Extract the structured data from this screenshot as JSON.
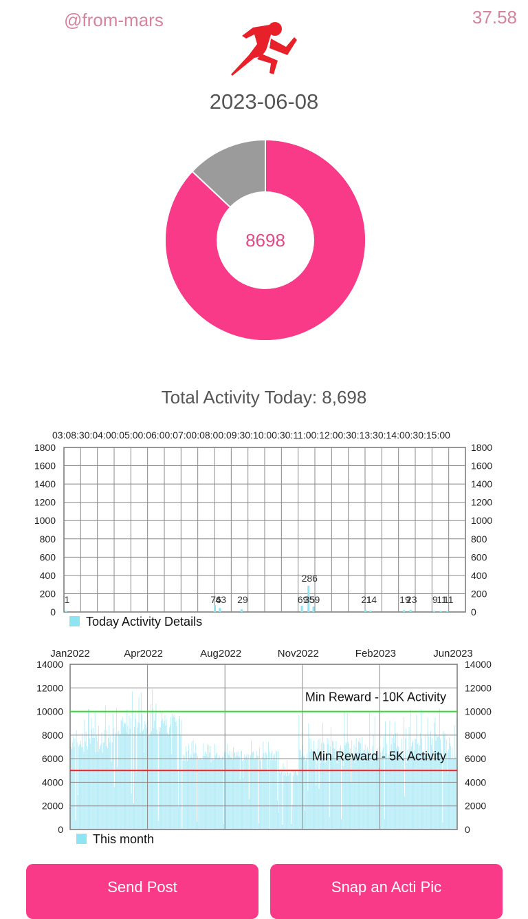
{
  "header": {
    "username": "@from-mars",
    "balance": "37.58"
  },
  "date": "2023-06-08",
  "donut": {
    "value_label": "8698",
    "progress_fraction": 0.87,
    "color_progress": "#f83a88",
    "color_rest": "#9b9b9b"
  },
  "total_label": "Total Activity Today: 8,698",
  "chart_data": [
    {
      "type": "bar",
      "legend": "Today Activity Details",
      "x_tick_labels_top": "03:08:30:04:00:05:00:06:00:07:00:08:00:09:30:10:00:30:11:00:12:00:30:13:30:14:00:30:15:00",
      "ylim": [
        0,
        1800
      ],
      "yticks": [
        0,
        200,
        400,
        600,
        800,
        1000,
        1200,
        1400,
        1600,
        1800
      ],
      "grid": true,
      "bar_color": "#8ee4f3",
      "bars": [
        {
          "i": 0.1,
          "v": 1,
          "label": "1"
        },
        {
          "i": 9.0,
          "v": 76,
          "label": "76"
        },
        {
          "i": 9.3,
          "v": 43,
          "label": "43"
        },
        {
          "i": 10.6,
          "v": 29,
          "label": "29"
        },
        {
          "i": 14.2,
          "v": 69,
          "label": "69"
        },
        {
          "i": 14.6,
          "v": 286,
          "label": "286"
        },
        {
          "i": 14.6,
          "v": 35,
          "label": "35"
        },
        {
          "i": 14.9,
          "v": 59,
          "label": "59"
        },
        {
          "i": 18.0,
          "v": 21,
          "label": "21"
        },
        {
          "i": 18.3,
          "v": 14,
          "label": "14"
        },
        {
          "i": 20.3,
          "v": 19,
          "label": "19"
        },
        {
          "i": 20.7,
          "v": 23,
          "label": "23"
        },
        {
          "i": 22.1,
          "v": 9,
          "label": "9"
        },
        {
          "i": 22.5,
          "v": 11,
          "label": "11"
        },
        {
          "i": 22.9,
          "v": 11,
          "label": "11"
        }
      ]
    },
    {
      "type": "bar",
      "legend": "This month",
      "x_tick_labels": [
        "Jan2022",
        "Apr2022",
        "Aug2022",
        "Nov2022",
        "Feb2023",
        "Jun2023"
      ],
      "ylim": [
        0,
        14000
      ],
      "yticks": [
        0,
        2000,
        4000,
        6000,
        8000,
        10000,
        12000,
        14000
      ],
      "grid": true,
      "bar_color": "#b4ecf7",
      "reference_lines": [
        {
          "value": 10000,
          "label": "Min Reward - 10K Activity",
          "color": "#33dd33"
        },
        {
          "value": 5000,
          "label": "Min Reward - 5K Activity",
          "color": "#ff1e1e"
        }
      ],
      "daily_profile": [
        {
          "from": 0.0,
          "to": 0.12,
          "base": 6500,
          "peak": 10800
        },
        {
          "from": 0.12,
          "to": 0.29,
          "base": 8000,
          "peak": 11900
        },
        {
          "from": 0.29,
          "to": 0.54,
          "base": 5800,
          "peak": 7600
        },
        {
          "from": 0.54,
          "to": 0.59,
          "base": 4500,
          "peak": 6000
        },
        {
          "from": 0.59,
          "to": 0.8,
          "base": 5600,
          "peak": 10000
        },
        {
          "from": 0.8,
          "to": 1.0,
          "base": 5800,
          "peak": 10600
        }
      ]
    }
  ],
  "buttons": {
    "send_post": "Send Post",
    "snap_pic": "Snap an Acti Pic"
  }
}
